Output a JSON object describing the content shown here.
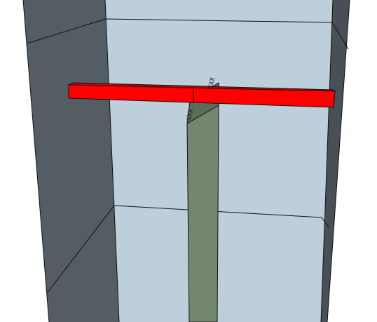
{
  "scene": {
    "view": "3d-viewport",
    "colors": {
      "background": "#ffffff",
      "left_wall": "#555d64",
      "back_wall": "#bccfda",
      "right_wall": "#484f56",
      "beam_front": "#ff0000",
      "beam_top": "#d40000",
      "beam_end": "#b00000",
      "column_front": "#75866f",
      "column_side": "#5e6c59",
      "edges": "#111111"
    },
    "objects": [
      {
        "name": "left-wall",
        "label": ""
      },
      {
        "name": "back-wall",
        "label": ""
      },
      {
        "name": "right-wall",
        "label": ""
      },
      {
        "name": "red-beam",
        "label": ""
      },
      {
        "name": "green-column",
        "label": ""
      }
    ],
    "markers": {
      "upper": "XXX",
      "lower": "XXX"
    }
  }
}
